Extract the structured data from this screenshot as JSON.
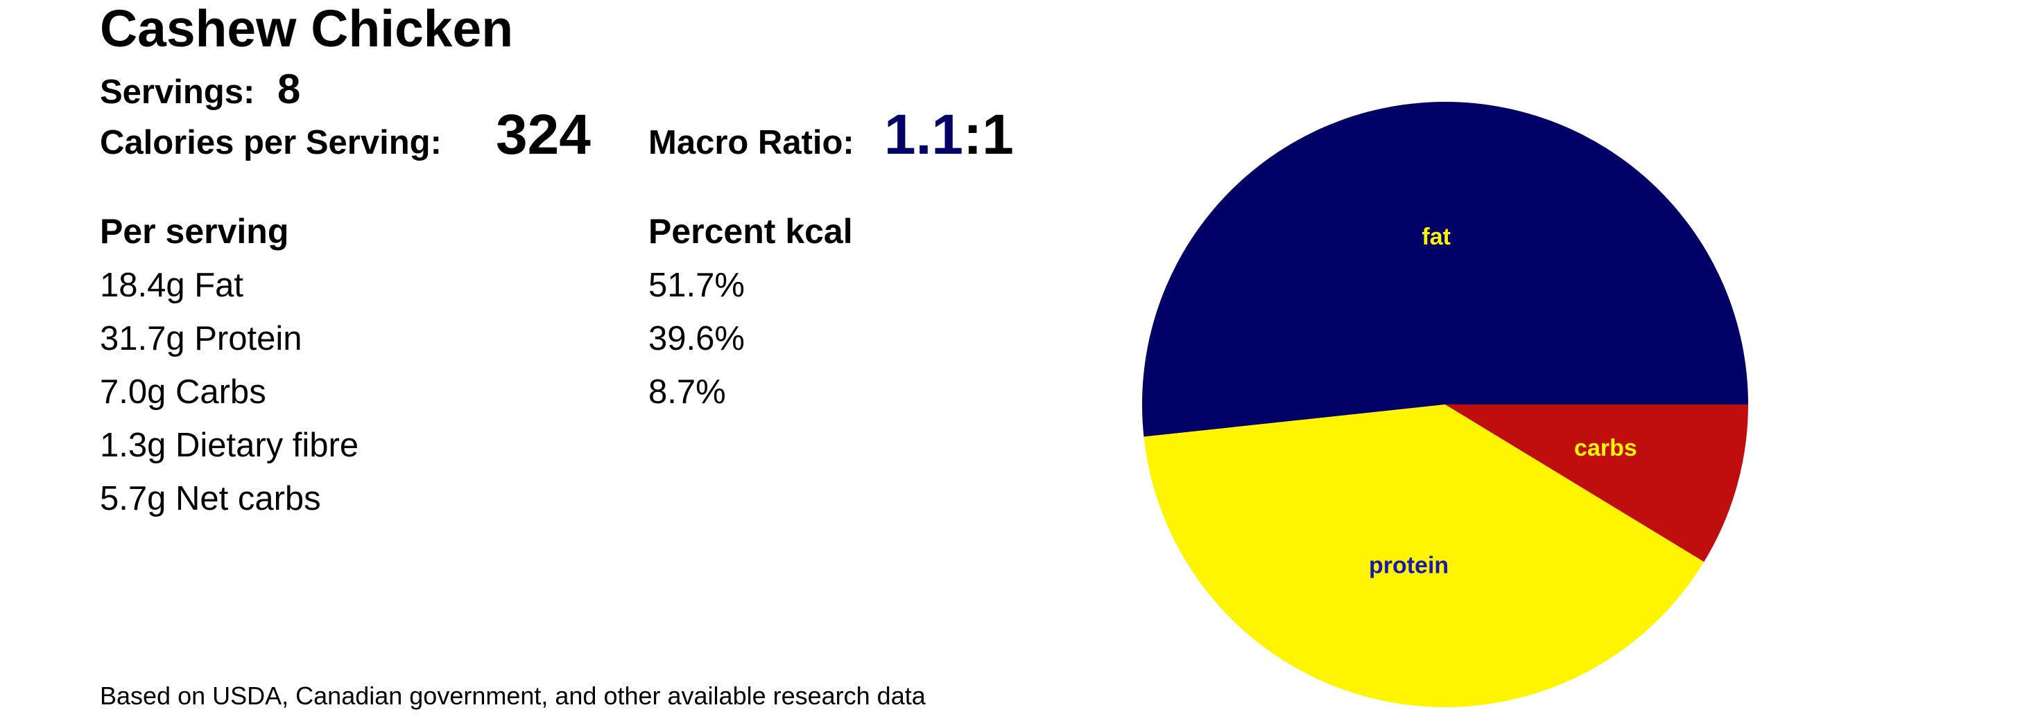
{
  "header": {
    "title": "Cashew Chicken",
    "servings_label": "Servings:",
    "servings": "8",
    "calories_label": "Calories per Serving:",
    "calories": "324",
    "ratio_label": "Macro Ratio:",
    "ratio_value": "1.1",
    "ratio_suffix": ":1"
  },
  "table": {
    "headers": [
      "Per serving",
      "Percent kcal"
    ],
    "per_serving": [
      "18.4g Fat",
      "31.7g Protein",
      "7.0g Carbs",
      "1.3g Dietary fibre",
      "5.7g Net carbs"
    ],
    "percent_kcal": [
      "51.7%",
      "39.6%",
      "8.7%"
    ]
  },
  "footer": "Based on USDA, Canadian government, and other available research data",
  "chart_data": {
    "type": "pie",
    "categories": [
      "fat",
      "protein",
      "carbs"
    ],
    "values": [
      51.7,
      39.6,
      8.7
    ],
    "colors": [
      "#000066",
      "#fff500",
      "#c00d0d"
    ],
    "label_colors": [
      "#fff500",
      "#1a1aaa",
      "#fff500"
    ]
  }
}
